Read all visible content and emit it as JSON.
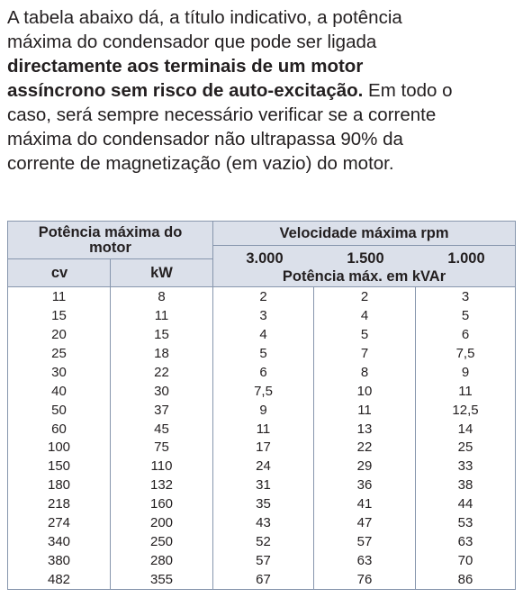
{
  "paragraph": {
    "lines": [
      [
        "A tabela abaixo dá, a título indicativo, a potência"
      ],
      [
        "máxima do condensador que pode ser ligada"
      ],
      [
        "directamente aos terminais de um motor"
      ],
      [
        "assíncrono sem risco de auto-excitação.",
        " Em todo o"
      ],
      [
        "caso, será sempre necessário verificar se a corrente"
      ],
      [
        "máxima do condensador não ultrapassa 90% da"
      ],
      [
        "corrente de magnetização (em vazio) do motor."
      ]
    ]
  },
  "table": {
    "header": {
      "motor": "Potência máxima do motor",
      "speed": "Velocidade máxima rpm",
      "cv": "cv",
      "kw": "kW",
      "speeds": [
        "3.000",
        "1.500",
        "1.000"
      ],
      "unit": "Potência máx. em kVAr"
    },
    "rows": [
      [
        "11",
        "8",
        "2",
        "2",
        "3"
      ],
      [
        "15",
        "11",
        "3",
        "4",
        "5"
      ],
      [
        "20",
        "15",
        "4",
        "5",
        "6"
      ],
      [
        "25",
        "18",
        "5",
        "7",
        "7,5"
      ],
      [
        "30",
        "22",
        "6",
        "8",
        "9"
      ],
      [
        "40",
        "30",
        "7,5",
        "10",
        "11"
      ],
      [
        "50",
        "37",
        "9",
        "11",
        "12,5"
      ],
      [
        "60",
        "45",
        "11",
        "13",
        "14"
      ],
      [
        "100",
        "75",
        "17",
        "22",
        "25"
      ],
      [
        "150",
        "110",
        "24",
        "29",
        "33"
      ],
      [
        "180",
        "132",
        "31",
        "36",
        "38"
      ],
      [
        "218",
        "160",
        "35",
        "41",
        "44"
      ],
      [
        "274",
        "200",
        "43",
        "47",
        "53"
      ],
      [
        "340",
        "250",
        "52",
        "57",
        "63"
      ],
      [
        "380",
        "280",
        "57",
        "63",
        "70"
      ],
      [
        "482",
        "355",
        "67",
        "76",
        "86"
      ]
    ]
  }
}
